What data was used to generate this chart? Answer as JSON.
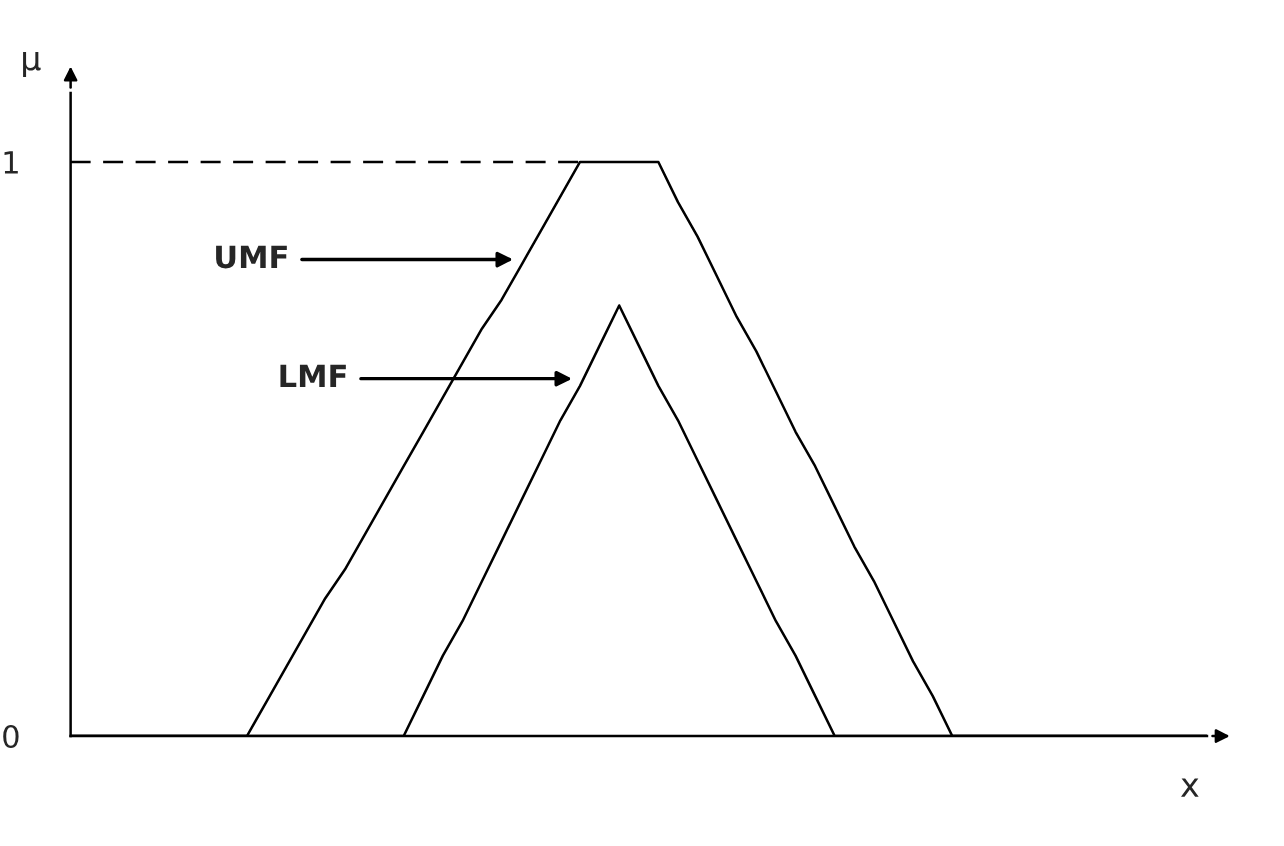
{
  "chart_data": {
    "type": "line",
    "xlabel": "x",
    "ylabel": "μ",
    "categories": [
      null,
      null,
      null,
      null,
      null,
      null,
      null,
      null,
      null,
      null,
      null,
      null,
      null,
      null,
      null,
      null,
      null,
      null,
      null,
      null,
      null,
      null,
      null,
      null,
      null,
      null,
      null,
      null,
      null,
      null,
      null,
      null,
      null,
      null,
      null,
      null,
      null,
      null,
      null,
      null,
      null,
      null,
      null,
      null,
      null,
      null,
      null,
      null,
      null,
      null,
      null,
      null,
      null,
      null,
      null,
      null,
      null,
      null,
      null
    ],
    "series": [
      {
        "color": "#000000",
        "values": [
          0,
          0,
          0,
          0,
          0,
          0,
          0,
          0,
          0,
          0,
          0.06,
          0.12,
          0.18,
          0.24,
          0.29,
          0.35,
          0.41,
          0.47,
          0.53,
          0.59,
          0.65,
          0.71,
          0.76,
          0.82,
          0.88,
          0.94,
          1,
          1,
          1,
          1,
          1,
          0.93,
          0.87,
          0.8,
          0.73,
          0.67,
          0.6,
          0.53,
          0.47,
          0.4,
          0.33,
          0.27,
          0.2,
          0.13,
          0.07,
          0,
          0,
          0,
          0,
          0,
          0,
          0,
          0,
          0,
          0,
          0,
          0,
          0,
          0
        ]
      },
      {
        "color": "#000000",
        "values": [
          0,
          0,
          0,
          0,
          0,
          0,
          0,
          0,
          0,
          0,
          0,
          0,
          0,
          0,
          0,
          0,
          0,
          0,
          0.07,
          0.14,
          0.2,
          0.27,
          0.34,
          0.41,
          0.48,
          0.55,
          0.61,
          0.68,
          0.75,
          0.68,
          0.61,
          0.55,
          0.48,
          0.41,
          0.34,
          0.27,
          0.2,
          0.14,
          0.07,
          0,
          0,
          0,
          0,
          0,
          0,
          0,
          0,
          0,
          0,
          0,
          0,
          0,
          0,
          0,
          0,
          0,
          0,
          0,
          0
        ]
      },
      {
        "color": "#000000",
        "line_style": "dashed",
        "values": [
          1,
          1,
          1,
          1,
          1,
          1,
          1,
          1,
          1,
          1,
          1,
          1,
          1,
          1,
          1,
          1,
          1,
          1,
          1,
          1,
          1,
          1,
          1,
          1,
          1,
          1,
          1,
          null,
          null,
          null,
          null,
          null,
          null,
          null,
          null,
          null,
          null,
          null,
          null,
          null,
          null,
          null,
          null,
          null,
          null,
          null,
          null,
          null,
          null,
          null,
          null,
          null,
          null,
          null,
          null,
          null,
          null,
          null,
          null
        ]
      }
    ],
    "ylim": [
      0,
      1.12
    ],
    "yticks": [
      0,
      1
    ],
    "tick_labels": "y",
    "grid": false,
    "marker": "none",
    "line_style": "solid",
    "annotations": [
      "UMF",
      "LMF"
    ]
  }
}
